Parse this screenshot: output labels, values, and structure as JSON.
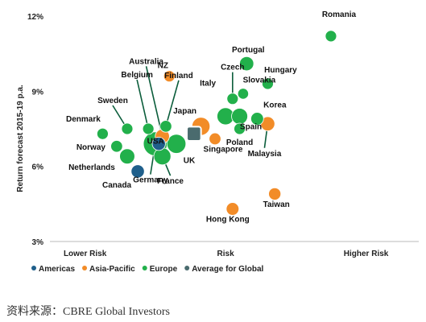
{
  "chart_data": {
    "type": "scatter",
    "ylabel": "Return forecast 2015-19 p.a.",
    "ylim": [
      3,
      12
    ],
    "y_ticks": [
      "12%",
      "9%",
      "6%",
      "3%"
    ],
    "y_tick_values": [
      12,
      9,
      6,
      3
    ],
    "x_categories": [
      "Lower Risk",
      "Risk",
      "Higher Risk"
    ],
    "x_category_values": [
      1,
      5,
      9
    ],
    "xlim": [
      0,
      10.5
    ],
    "colors": {
      "Americas": "#1f5f8b",
      "Asia-Pacific": "#f28c28",
      "Europe": "#22b04b",
      "Average for Global": "#4a6b6e"
    },
    "legend": [
      "Americas",
      "Asia-Pacific",
      "Europe",
      "Average for Global"
    ],
    "points": [
      {
        "label": "Romania",
        "region": "Europe",
        "x": 8.0,
        "y": 11.2,
        "size": 1.0
      },
      {
        "label": "Portugal",
        "region": "Europe",
        "x": 5.6,
        "y": 10.1,
        "size": 1.6
      },
      {
        "label": "Hungary",
        "region": "Europe",
        "x": 6.2,
        "y": 9.3,
        "size": 1.0
      },
      {
        "label": "Slovakia",
        "region": "Europe",
        "x": 5.5,
        "y": 8.9,
        "size": 0.9
      },
      {
        "label": "Czech",
        "region": "Europe",
        "x": 5.2,
        "y": 8.7,
        "size": 1.0
      },
      {
        "label": "NZ",
        "region": "Asia-Pacific",
        "x": 3.4,
        "y": 9.6,
        "size": 1.0
      },
      {
        "label": "Australia",
        "region": "Asia-Pacific",
        "x": 3.2,
        "y": 7.2,
        "size": 1.6
      },
      {
        "label": "Belgium",
        "region": "Europe",
        "x": 2.8,
        "y": 7.5,
        "size": 1.0
      },
      {
        "label": "Finland",
        "region": "Europe",
        "x": 3.3,
        "y": 7.6,
        "size": 1.1
      },
      {
        "label": "Italy",
        "region": "Europe",
        "x": 5.0,
        "y": 8.0,
        "size": 2.2
      },
      {
        "label": "Japan",
        "region": "Asia-Pacific",
        "x": 4.3,
        "y": 7.6,
        "size": 2.4
      },
      {
        "label": "Spain",
        "region": "Europe",
        "x": 5.4,
        "y": 8.0,
        "size": 2.0
      },
      {
        "label": "Korea",
        "region": "Europe",
        "x": 5.9,
        "y": 7.9,
        "size": 1.3
      },
      {
        "label": "Poland",
        "region": "Europe",
        "x": 5.4,
        "y": 7.5,
        "size": 1.0
      },
      {
        "label": "Malaysia",
        "region": "Asia-Pacific",
        "x": 6.2,
        "y": 7.7,
        "size": 1.6
      },
      {
        "label": "Sweden",
        "region": "Europe",
        "x": 2.2,
        "y": 7.5,
        "size": 1.0
      },
      {
        "label": "Denmark",
        "region": "Europe",
        "x": 1.5,
        "y": 7.3,
        "size": 1.0
      },
      {
        "label": "Norway",
        "region": "Europe",
        "x": 1.9,
        "y": 6.8,
        "size": 1.1
      },
      {
        "label": "Netherlands",
        "region": "Europe",
        "x": 2.2,
        "y": 6.4,
        "size": 1.8
      },
      {
        "label": "USA",
        "region": "Americas",
        "x": 3.1,
        "y": 6.9,
        "size": 1.4
      },
      {
        "label": "UK",
        "region": "Europe",
        "x": 3.6,
        "y": 6.9,
        "size": 2.6
      },
      {
        "label": "France",
        "region": "Europe",
        "x": 3.2,
        "y": 6.4,
        "size": 2.2
      },
      {
        "label": "Germany",
        "region": "Europe",
        "x": 3.0,
        "y": 6.9,
        "size": 3.6
      },
      {
        "label": "Canada",
        "region": "Americas",
        "x": 2.5,
        "y": 5.8,
        "size": 1.4
      },
      {
        "label": "Singapore",
        "region": "Asia-Pacific",
        "x": 4.7,
        "y": 7.1,
        "size": 1.1
      },
      {
        "label": "Taiwan",
        "region": "Asia-Pacific",
        "x": 6.4,
        "y": 4.9,
        "size": 1.2
      },
      {
        "label": "Hong Kong",
        "region": "Asia-Pacific",
        "x": 5.2,
        "y": 4.3,
        "size": 1.3
      },
      {
        "label": "",
        "region": "Average for Global",
        "x": 4.1,
        "y": 7.3,
        "size": 1.6
      }
    ]
  },
  "source": "资料来源：CBRE Global Investors"
}
